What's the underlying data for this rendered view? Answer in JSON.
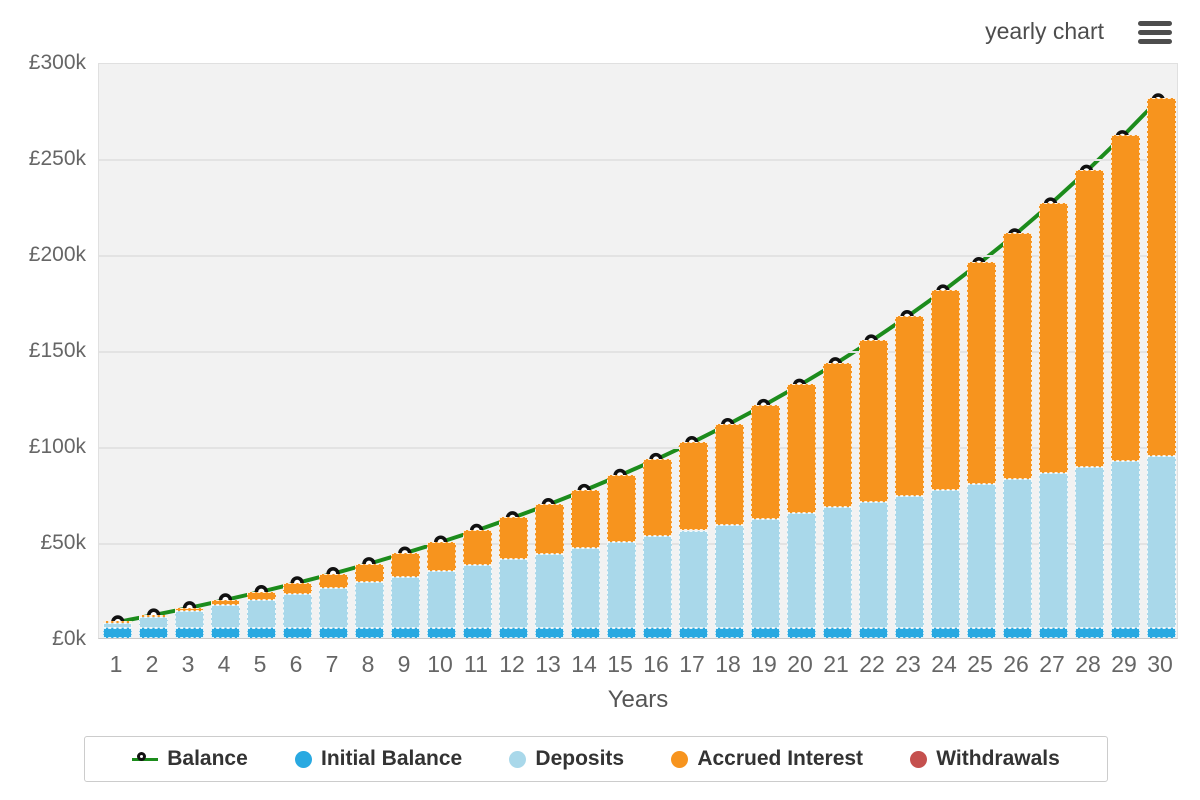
{
  "header": {
    "menu_icon": "hamburger-icon"
  },
  "chart_data": {
    "type": "bar",
    "subtype": "stacked-columns-with-line-overlay",
    "title": "yearly chart",
    "xlabel": "Years",
    "ylabel": "",
    "units": "GBP thousands",
    "x": [
      1,
      2,
      3,
      4,
      5,
      6,
      7,
      8,
      9,
      10,
      11,
      12,
      13,
      14,
      15,
      16,
      17,
      18,
      19,
      20,
      21,
      22,
      23,
      24,
      25,
      26,
      27,
      28,
      29,
      30
    ],
    "ylim_k": [
      0,
      300
    ],
    "y_ticks": [
      {
        "v": 0,
        "label": "£0k"
      },
      {
        "v": 50,
        "label": "£50k"
      },
      {
        "v": 100,
        "label": "£100k"
      },
      {
        "v": 150,
        "label": "£150k"
      },
      {
        "v": 200,
        "label": "£200k"
      },
      {
        "v": 250,
        "label": "£250k"
      },
      {
        "v": 300,
        "label": "£300k"
      }
    ],
    "grid": true,
    "series": [
      {
        "name": "Initial Balance",
        "color": "#29A9E1",
        "values_k": [
          5,
          5,
          5,
          5,
          5,
          5,
          5,
          5,
          5,
          5,
          5,
          5,
          5,
          5,
          5,
          5,
          5,
          5,
          5,
          5,
          5,
          5,
          5,
          5,
          5,
          5,
          5,
          5,
          5,
          5
        ]
      },
      {
        "name": "Deposits",
        "color": "#A9D8EA",
        "values_k": [
          3,
          6,
          9,
          12,
          15,
          18,
          21,
          24,
          27,
          30,
          33,
          36,
          39,
          42,
          45,
          48,
          51,
          54,
          57,
          60,
          63,
          66,
          69,
          72,
          75,
          78,
          81,
          84,
          87,
          90
        ]
      },
      {
        "name": "Accrued Interest",
        "color": "#F7941E",
        "values_k": [
          0.4,
          1.0,
          1.8,
          2.9,
          4.2,
          5.8,
          7.6,
          9.8,
          12.3,
          15.1,
          18.2,
          21.8,
          25.7,
          30.1,
          35.0,
          40.3,
          46.1,
          52.5,
          59.5,
          67.1,
          75.3,
          84.2,
          93.9,
          104.3,
          115.6,
          127.7,
          140.8,
          154.9,
          170.0,
          186.2
        ]
      },
      {
        "name": "Withdrawals",
        "color": "#C5504E",
        "values_k": [
          0,
          0,
          0,
          0,
          0,
          0,
          0,
          0,
          0,
          0,
          0,
          0,
          0,
          0,
          0,
          0,
          0,
          0,
          0,
          0,
          0,
          0,
          0,
          0,
          0,
          0,
          0,
          0,
          0,
          0
        ]
      }
    ],
    "line_series": {
      "name": "Balance",
      "color": "#1C8C1C",
      "marker": "white-circle-black-ring",
      "values_k": [
        8.4,
        12.0,
        15.8,
        19.9,
        24.2,
        28.8,
        33.6,
        38.8,
        44.3,
        50.1,
        56.2,
        62.8,
        69.7,
        77.1,
        85.0,
        93.3,
        102.1,
        111.5,
        121.5,
        132.1,
        143.3,
        155.2,
        167.9,
        181.3,
        195.6,
        210.7,
        226.8,
        243.9,
        262.0,
        281.2
      ]
    },
    "legend_position": "bottom"
  },
  "legend": {
    "items": [
      {
        "label": "Balance",
        "marker": "line-circle",
        "color": "#1C8C1C"
      },
      {
        "label": "Initial Balance",
        "marker": "circle",
        "color": "#29A9E1"
      },
      {
        "label": "Deposits",
        "marker": "circle",
        "color": "#A9D8EA"
      },
      {
        "label": "Accrued Interest",
        "marker": "circle",
        "color": "#F7941E"
      },
      {
        "label": "Withdrawals",
        "marker": "circle",
        "color": "#C5504E"
      }
    ]
  }
}
